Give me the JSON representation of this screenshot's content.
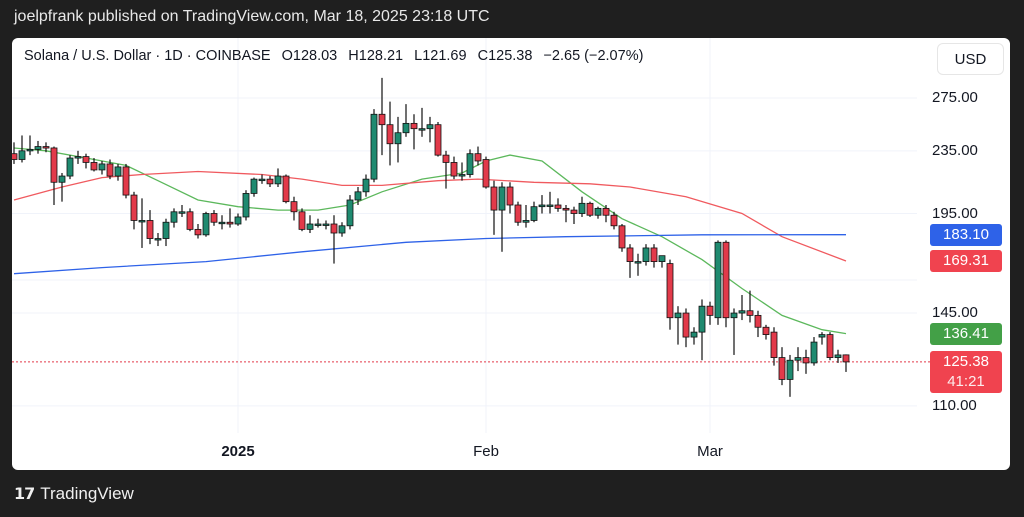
{
  "header": {
    "published": "joelpfrank published on TradingView.com, Mar 18, 2025 23:18 UTC"
  },
  "legend": {
    "symbol": "Solana / U.S. Dollar · 1D · COINBASE",
    "open": "O128.03",
    "high": "H128.21",
    "low": "L121.69",
    "close": "C125.38",
    "change": "−2.65 (−2.07%)"
  },
  "currency_button": "USD",
  "footer": {
    "brand": "TradingView",
    "logo_text": "17"
  },
  "colors": {
    "up": "#1f8a70",
    "down": "#e23a4a",
    "ma_fast": "#5cb85c",
    "ma_mid": "#f05a5f",
    "ma_slow": "#2e62e8",
    "price_line": "#e23a4a"
  },
  "chart_data": {
    "type": "candlestick",
    "scale": "log",
    "y_ticks": [
      "275.00",
      "235.00",
      "195.00",
      "145.00",
      "110.00"
    ],
    "y_tick_values": [
      275,
      235,
      195,
      145,
      110
    ],
    "x_ticks": [
      {
        "label": "2025",
        "date": "2025-01-01"
      },
      {
        "label": "Feb",
        "date": "2025-02-01"
      },
      {
        "label": "Mar",
        "date": "2025-03-01"
      }
    ],
    "grid": true,
    "badges": [
      {
        "value": "183.10",
        "price": 183.1,
        "color": "#2e62e8"
      },
      {
        "value": "169.31",
        "price": 169.31,
        "color": "#f0434f"
      },
      {
        "value": "136.41",
        "price": 136.41,
        "color": "#43a047"
      }
    ],
    "last_price": {
      "value": "125.38",
      "countdown": "41:21",
      "price": 125.38,
      "color": "#f0434f"
    },
    "candles": [
      [
        "2024-12-04",
        233,
        241,
        226,
        229
      ],
      [
        "2024-12-05",
        229,
        246,
        227,
        235
      ],
      [
        "2024-12-06",
        235,
        246,
        232,
        236
      ],
      [
        "2024-12-07",
        236,
        242,
        233,
        238
      ],
      [
        "2024-12-08",
        238,
        241,
        234,
        237
      ],
      [
        "2024-12-09",
        237,
        238,
        200,
        214
      ],
      [
        "2024-12-10",
        214,
        220,
        202,
        218
      ],
      [
        "2024-12-11",
        218,
        232,
        216,
        230
      ],
      [
        "2024-12-12",
        230,
        235,
        226,
        231
      ],
      [
        "2024-12-13",
        231,
        233,
        223,
        227
      ],
      [
        "2024-12-14",
        227,
        230,
        221,
        222
      ],
      [
        "2024-12-15",
        222,
        228,
        219,
        226
      ],
      [
        "2024-12-16",
        226,
        229,
        216,
        218
      ],
      [
        "2024-12-17",
        218,
        226,
        215,
        224
      ],
      [
        "2024-12-18",
        224,
        226,
        204,
        206
      ],
      [
        "2024-12-19",
        206,
        208,
        186,
        191
      ],
      [
        "2024-12-20",
        191,
        204,
        176,
        191
      ],
      [
        "2024-12-21",
        191,
        197,
        178,
        181
      ],
      [
        "2024-12-22",
        181,
        184,
        177,
        181
      ],
      [
        "2024-12-23",
        181,
        192,
        177,
        190
      ],
      [
        "2024-12-24",
        190,
        198,
        187,
        196
      ],
      [
        "2024-12-25",
        196,
        200,
        193,
        196
      ],
      [
        "2024-12-26",
        196,
        198,
        185,
        186
      ],
      [
        "2024-12-27",
        186,
        189,
        181,
        183
      ],
      [
        "2024-12-28",
        183,
        196,
        182,
        195
      ],
      [
        "2024-12-29",
        195,
        197,
        188,
        190
      ],
      [
        "2024-12-30",
        190,
        194,
        186,
        190
      ],
      [
        "2024-12-31",
        190,
        198,
        187,
        189
      ],
      [
        "2025-01-01",
        189,
        195,
        188,
        193
      ],
      [
        "2025-01-02",
        193,
        209,
        191,
        207
      ],
      [
        "2025-01-03",
        207,
        217,
        205,
        216
      ],
      [
        "2025-01-04",
        216,
        219,
        213,
        216
      ],
      [
        "2025-01-05",
        216,
        218,
        211,
        213
      ],
      [
        "2025-01-06",
        213,
        223,
        211,
        218
      ],
      [
        "2025-01-07",
        218,
        219,
        201,
        202
      ],
      [
        "2025-01-08",
        202,
        205,
        191,
        196
      ],
      [
        "2025-01-09",
        196,
        198,
        185,
        186
      ],
      [
        "2025-01-10",
        186,
        194,
        184,
        189
      ],
      [
        "2025-01-11",
        189,
        192,
        187,
        189
      ],
      [
        "2025-01-12",
        189,
        191,
        186,
        189
      ],
      [
        "2025-01-13",
        189,
        194,
        168,
        184
      ],
      [
        "2025-01-14",
        184,
        190,
        182,
        188
      ],
      [
        "2025-01-15",
        188,
        206,
        186,
        203
      ],
      [
        "2025-01-16",
        203,
        211,
        200,
        208
      ],
      [
        "2025-01-17",
        208,
        219,
        205,
        216
      ],
      [
        "2025-01-18",
        216,
        266,
        214,
        262
      ],
      [
        "2025-01-19",
        262,
        292,
        232,
        254
      ],
      [
        "2025-01-20",
        254,
        272,
        225,
        240
      ],
      [
        "2025-01-21",
        240,
        260,
        227,
        248
      ],
      [
        "2025-01-22",
        248,
        270,
        245,
        255
      ],
      [
        "2025-01-23",
        255,
        262,
        236,
        251
      ],
      [
        "2025-01-24",
        251,
        267,
        245,
        251
      ],
      [
        "2025-01-25",
        251,
        260,
        241,
        254
      ],
      [
        "2025-01-26",
        254,
        256,
        231,
        232
      ],
      [
        "2025-01-27",
        232,
        235,
        210,
        227
      ],
      [
        "2025-01-28",
        227,
        231,
        216,
        218
      ],
      [
        "2025-01-29",
        218,
        227,
        215,
        219
      ],
      [
        "2025-01-30",
        219,
        236,
        217,
        233
      ],
      [
        "2025-01-31",
        233,
        238,
        225,
        228
      ],
      [
        "2025-02-01",
        229,
        231,
        210,
        211
      ],
      [
        "2025-02-02",
        211,
        215,
        183,
        197
      ],
      [
        "2025-02-03",
        197,
        214,
        174,
        211
      ],
      [
        "2025-02-04",
        211,
        214,
        195,
        200
      ],
      [
        "2025-02-05",
        200,
        202,
        188,
        190
      ],
      [
        "2025-02-06",
        190,
        200,
        187,
        191
      ],
      [
        "2025-02-07",
        191,
        202,
        190,
        199
      ],
      [
        "2025-02-08",
        199,
        206,
        195,
        200
      ],
      [
        "2025-02-09",
        200,
        208,
        195,
        200
      ],
      [
        "2025-02-10",
        200,
        204,
        196,
        198
      ],
      [
        "2025-02-11",
        198,
        200,
        190,
        197
      ],
      [
        "2025-02-12",
        197,
        199,
        189,
        195
      ],
      [
        "2025-02-13",
        195,
        205,
        193,
        201
      ],
      [
        "2025-02-14",
        201,
        202,
        193,
        194
      ],
      [
        "2025-02-15",
        194,
        199,
        192,
        198
      ],
      [
        "2025-02-16",
        198,
        200,
        190,
        194
      ],
      [
        "2025-02-17",
        194,
        196,
        186,
        188
      ],
      [
        "2025-02-18",
        188,
        189,
        174,
        176
      ],
      [
        "2025-02-19",
        176,
        178,
        161,
        169
      ],
      [
        "2025-02-20",
        169,
        173,
        162,
        169
      ],
      [
        "2025-02-21",
        169,
        178,
        167,
        176
      ],
      [
        "2025-02-22",
        176,
        178,
        166,
        169
      ],
      [
        "2025-02-23",
        169,
        172,
        166,
        172
      ],
      [
        "2025-02-24",
        168,
        170,
        138,
        143
      ],
      [
        "2025-02-25",
        143,
        148,
        132,
        145
      ],
      [
        "2025-02-26",
        145,
        147,
        131,
        135
      ],
      [
        "2025-02-27",
        135,
        139,
        132,
        137
      ],
      [
        "2025-02-28",
        137,
        151,
        126,
        148
      ],
      [
        "2025-03-01",
        148,
        150,
        140,
        144
      ],
      [
        "2025-03-02",
        143,
        180,
        140,
        179
      ],
      [
        "2025-03-03",
        179,
        180,
        139,
        143
      ],
      [
        "2025-03-04",
        143,
        147,
        128,
        145
      ],
      [
        "2025-03-05",
        145,
        153,
        142,
        146
      ],
      [
        "2025-03-06",
        146,
        155,
        141,
        144
      ],
      [
        "2025-03-07",
        144,
        146,
        135,
        139
      ],
      [
        "2025-03-08",
        139,
        140,
        134,
        136
      ],
      [
        "2025-03-09",
        137,
        139,
        124,
        127
      ],
      [
        "2025-03-10",
        127,
        131,
        117,
        119
      ],
      [
        "2025-03-11",
        119,
        128,
        113,
        126
      ],
      [
        "2025-03-12",
        126,
        131,
        122,
        127
      ],
      [
        "2025-03-13",
        127,
        130,
        121,
        125
      ],
      [
        "2025-03-14",
        125,
        135,
        124,
        133
      ],
      [
        "2025-03-15",
        135,
        137,
        132,
        136
      ],
      [
        "2025-03-16",
        136,
        137,
        126,
        127
      ],
      [
        "2025-03-17",
        127,
        130,
        125,
        128
      ],
      [
        "2025-03-18",
        128.03,
        128.21,
        121.69,
        125.38
      ]
    ],
    "moving_averages": [
      {
        "key": "fast",
        "points": [
          [
            "2024-12-04",
            237
          ],
          [
            "2024-12-08",
            235
          ],
          [
            "2024-12-13",
            230
          ],
          [
            "2024-12-18",
            225
          ],
          [
            "2024-12-22",
            215
          ],
          [
            "2024-12-27",
            203
          ],
          [
            "2025-01-01",
            199
          ],
          [
            "2025-01-06",
            197
          ],
          [
            "2025-01-11",
            197
          ],
          [
            "2025-01-15",
            200
          ],
          [
            "2025-01-19",
            208
          ],
          [
            "2025-01-24",
            216
          ],
          [
            "2025-01-29",
            220
          ],
          [
            "2025-02-01",
            228
          ],
          [
            "2025-02-04",
            232
          ],
          [
            "2025-02-08",
            228
          ],
          [
            "2025-02-13",
            208
          ],
          [
            "2025-02-18",
            192
          ],
          [
            "2025-02-23",
            182
          ],
          [
            "2025-02-28",
            170
          ],
          [
            "2025-03-05",
            156
          ],
          [
            "2025-03-10",
            144
          ],
          [
            "2025-03-15",
            138
          ],
          [
            "2025-03-18",
            136.41
          ]
        ]
      },
      {
        "key": "mid",
        "points": [
          [
            "2024-12-04",
            203
          ],
          [
            "2024-12-10",
            211
          ],
          [
            "2024-12-15",
            217
          ],
          [
            "2024-12-20",
            219
          ],
          [
            "2024-12-27",
            221
          ],
          [
            "2025-01-04",
            219
          ],
          [
            "2025-01-09",
            216
          ],
          [
            "2025-01-14",
            212
          ],
          [
            "2025-01-19",
            212
          ],
          [
            "2025-01-26",
            215
          ],
          [
            "2025-01-31",
            216
          ],
          [
            "2025-02-07",
            214
          ],
          [
            "2025-02-14",
            213
          ],
          [
            "2025-02-19",
            211
          ],
          [
            "2025-02-26",
            205
          ],
          [
            "2025-03-05",
            195
          ],
          [
            "2025-03-10",
            182
          ],
          [
            "2025-03-18",
            169.31
          ]
        ]
      },
      {
        "key": "slow",
        "points": [
          [
            "2024-12-04",
            163
          ],
          [
            "2024-12-15",
            166
          ],
          [
            "2024-12-28",
            169
          ],
          [
            "2025-01-09",
            174
          ],
          [
            "2025-01-22",
            179
          ],
          [
            "2025-02-01",
            181
          ],
          [
            "2025-02-11",
            182
          ],
          [
            "2025-02-28",
            183
          ],
          [
            "2025-03-18",
            183.1
          ]
        ]
      }
    ]
  }
}
